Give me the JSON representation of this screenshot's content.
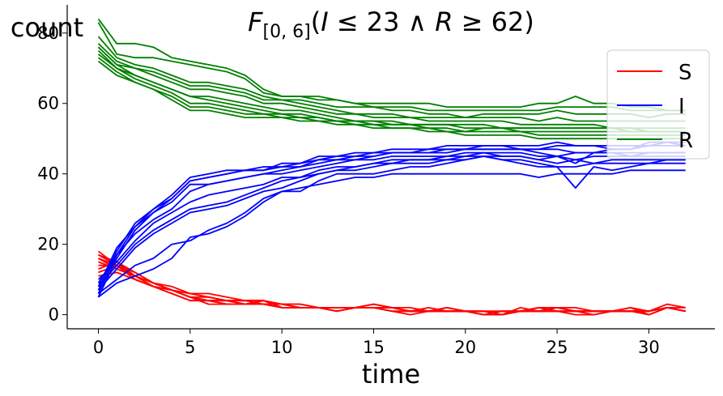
{
  "chart_data": {
    "type": "line",
    "title": {
      "lead": "F",
      "subscript": "[0, 6]",
      "open": "(",
      "a": "I",
      "op1": " ≤ 23 ∧ ",
      "b": "R",
      "op2": " ≥ 62)"
    },
    "xlabel": "time",
    "ylabel": "count",
    "xlim": [
      -1.7,
      33.6
    ],
    "ylim": [
      -4,
      88
    ],
    "x_ticks": [
      0,
      5,
      10,
      15,
      20,
      25,
      30
    ],
    "y_ticks": [
      0,
      20,
      40,
      60,
      80
    ],
    "grid": false,
    "legend_placement": "top-right",
    "colors": {
      "S": "#ff0000",
      "I": "#0000ff",
      "R": "#008000"
    },
    "legend": [
      "S",
      "I",
      "R"
    ],
    "x": [
      0,
      1,
      2,
      3,
      4,
      5,
      6,
      7,
      8,
      9,
      10,
      11,
      12,
      13,
      14,
      15,
      16,
      17,
      18,
      19,
      20,
      21,
      22,
      23,
      24,
      25,
      26,
      27,
      28,
      29,
      30,
      31,
      32
    ],
    "series": [
      {
        "group": "S",
        "values": [
          18,
          14,
          11,
          9,
          7,
          6,
          6,
          5,
          4,
          4,
          3,
          3,
          2,
          2,
          2,
          3,
          2,
          2,
          1,
          2,
          1,
          1,
          0,
          1,
          2,
          2,
          1,
          1,
          1,
          1,
          1,
          2,
          1
        ]
      },
      {
        "group": "S",
        "values": [
          17,
          15,
          12,
          9,
          8,
          6,
          5,
          4,
          4,
          3,
          3,
          2,
          2,
          2,
          2,
          2,
          2,
          1,
          1,
          1,
          1,
          0,
          1,
          1,
          1,
          1,
          1,
          1,
          1,
          1,
          1,
          2,
          1
        ]
      },
      {
        "group": "S",
        "values": [
          16,
          14,
          10,
          8,
          7,
          5,
          4,
          4,
          4,
          4,
          3,
          3,
          2,
          1,
          2,
          2,
          1,
          1,
          2,
          1,
          1,
          1,
          0,
          2,
          1,
          2,
          2,
          1,
          1,
          2,
          1,
          2,
          2
        ]
      },
      {
        "group": "S",
        "values": [
          15,
          13,
          11,
          9,
          7,
          5,
          5,
          4,
          3,
          3,
          2,
          2,
          2,
          2,
          2,
          2,
          2,
          1,
          1,
          2,
          1,
          0,
          1,
          1,
          2,
          1,
          1,
          0,
          1,
          1,
          1,
          2,
          1
        ]
      },
      {
        "group": "S",
        "values": [
          14,
          14,
          10,
          8,
          6,
          4,
          4,
          4,
          3,
          4,
          2,
          2,
          2,
          1,
          2,
          2,
          1,
          1,
          1,
          1,
          1,
          1,
          1,
          1,
          1,
          2,
          1,
          1,
          1,
          1,
          1,
          3,
          2
        ]
      },
      {
        "group": "S",
        "values": [
          13,
          15,
          11,
          9,
          7,
          5,
          4,
          3,
          3,
          3,
          3,
          2,
          2,
          2,
          2,
          3,
          2,
          1,
          1,
          1,
          1,
          0,
          0,
          1,
          1,
          2,
          1,
          1,
          1,
          2,
          0,
          2,
          1
        ]
      },
      {
        "group": "S",
        "values": [
          12,
          14,
          10,
          8,
          7,
          5,
          4,
          4,
          4,
          4,
          2,
          2,
          2,
          1,
          2,
          2,
          2,
          1,
          1,
          1,
          1,
          1,
          0,
          1,
          2,
          1,
          1,
          1,
          1,
          1,
          1,
          2,
          1
        ]
      },
      {
        "group": "S",
        "values": [
          11,
          12,
          10,
          8,
          7,
          5,
          3,
          3,
          3,
          3,
          3,
          2,
          2,
          1,
          2,
          3,
          2,
          1,
          1,
          1,
          1,
          0,
          1,
          1,
          1,
          1,
          1,
          1,
          1,
          1,
          1,
          2,
          1
        ]
      },
      {
        "group": "S",
        "values": [
          16,
          13,
          11,
          8,
          6,
          4,
          4,
          3,
          3,
          4,
          2,
          2,
          2,
          2,
          2,
          2,
          1,
          0,
          1,
          1,
          1,
          0,
          0,
          1,
          1,
          1,
          0,
          0,
          1,
          1,
          1,
          2,
          1
        ]
      },
      {
        "group": "S",
        "values": [
          17,
          14,
          12,
          9,
          7,
          6,
          5,
          4,
          3,
          3,
          2,
          2,
          2,
          1,
          2,
          2,
          2,
          1,
          1,
          2,
          1,
          1,
          1,
          1,
          2,
          2,
          1,
          1,
          1,
          1,
          0,
          2,
          1
        ]
      },
      {
        "group": "I",
        "values": [
          5,
          16,
          24,
          29,
          33,
          38,
          39,
          40,
          41,
          41,
          42,
          42,
          44,
          45,
          45,
          45,
          46,
          46,
          46,
          47,
          47,
          47,
          47,
          47,
          46,
          45,
          43,
          46,
          47,
          47,
          48,
          48,
          48
        ]
      },
      {
        "group": "I",
        "values": [
          6,
          17,
          25,
          30,
          34,
          39,
          40,
          41,
          41,
          41,
          43,
          43,
          45,
          45,
          46,
          46,
          47,
          47,
          47,
          48,
          48,
          48,
          48,
          48,
          48,
          49,
          48,
          48,
          47,
          47,
          49,
          49,
          49
        ]
      },
      {
        "group": "I",
        "values": [
          7,
          18,
          26,
          30,
          33,
          38,
          39,
          40,
          41,
          42,
          42,
          43,
          44,
          44,
          45,
          46,
          46,
          46,
          47,
          47,
          47,
          48,
          48,
          47,
          47,
          48,
          48,
          48,
          48,
          48,
          48,
          49,
          48
        ]
      },
      {
        "group": "I",
        "values": [
          8,
          19,
          25,
          29,
          32,
          37,
          37,
          38,
          39,
          40,
          41,
          42,
          43,
          44,
          44,
          45,
          46,
          46,
          46,
          46,
          47,
          47,
          47,
          47,
          47,
          47,
          46,
          46,
          46,
          46,
          46,
          46,
          46
        ]
      },
      {
        "group": "I",
        "values": [
          9,
          17,
          23,
          27,
          30,
          35,
          37,
          38,
          39,
          40,
          40,
          41,
          42,
          43,
          44,
          44,
          45,
          45,
          45,
          45,
          46,
          46,
          46,
          46,
          45,
          45,
          46,
          46,
          46,
          45,
          46,
          46,
          46
        ]
      },
      {
        "group": "I",
        "values": [
          10,
          15,
          21,
          26,
          29,
          32,
          34,
          35,
          36,
          37,
          39,
          39,
          40,
          41,
          42,
          43,
          43,
          44,
          44,
          44,
          44,
          45,
          45,
          45,
          44,
          45,
          44,
          45,
          45,
          45,
          45,
          45,
          45
        ]
      },
      {
        "group": "I",
        "values": [
          8,
          14,
          20,
          24,
          27,
          30,
          31,
          32,
          34,
          36,
          38,
          39,
          41,
          42,
          42,
          43,
          44,
          44,
          44,
          45,
          45,
          46,
          45,
          45,
          44,
          43,
          44,
          43,
          44,
          44,
          44,
          44,
          44
        ]
      },
      {
        "group": "I",
        "values": [
          7,
          13,
          19,
          23,
          26,
          29,
          30,
          31,
          33,
          35,
          36,
          38,
          40,
          41,
          41,
          42,
          43,
          43,
          43,
          44,
          45,
          45,
          44,
          43,
          42,
          42,
          36,
          42,
          41,
          42,
          43,
          44,
          44
        ]
      },
      {
        "group": "I",
        "values": [
          6,
          10,
          14,
          16,
          20,
          21,
          24,
          26,
          29,
          33,
          35,
          35,
          38,
          40,
          40,
          40,
          41,
          42,
          42,
          43,
          44,
          45,
          44,
          44,
          43,
          42,
          42,
          43,
          43,
          43,
          43,
          43,
          43
        ]
      },
      {
        "group": "I",
        "values": [
          5,
          9,
          11,
          13,
          16,
          22,
          23,
          25,
          28,
          32,
          35,
          36,
          37,
          38,
          39,
          39,
          40,
          40,
          40,
          40,
          40,
          40,
          40,
          40,
          39,
          40,
          40,
          40,
          40,
          41,
          41,
          41,
          41
        ]
      },
      {
        "group": "R",
        "values": [
          84,
          77,
          77,
          76,
          73,
          72,
          71,
          70,
          68,
          64,
          62,
          62,
          61,
          61,
          60,
          60,
          60,
          60,
          60,
          59,
          59,
          59,
          59,
          59,
          60,
          60,
          62,
          60,
          60,
          59,
          59,
          58,
          58
        ]
      },
      {
        "group": "R",
        "values": [
          83,
          74,
          73,
          73,
          72,
          71,
          70,
          69,
          67,
          63,
          62,
          62,
          62,
          61,
          60,
          59,
          59,
          59,
          58,
          58,
          58,
          58,
          58,
          58,
          58,
          59,
          59,
          59,
          59,
          58,
          58,
          58,
          58
        ]
      },
      {
        "group": "R",
        "values": [
          79,
          73,
          71,
          70,
          68,
          66,
          66,
          65,
          64,
          62,
          61,
          61,
          60,
          59,
          59,
          59,
          58,
          58,
          57,
          57,
          56,
          57,
          57,
          57,
          57,
          58,
          57,
          57,
          57,
          57,
          56,
          57,
          57
        ]
      },
      {
        "group": "R",
        "values": [
          77,
          72,
          70,
          69,
          67,
          65,
          65,
          64,
          63,
          61,
          61,
          60,
          59,
          58,
          57,
          57,
          57,
          56,
          56,
          56,
          56,
          56,
          56,
          56,
          55,
          56,
          55,
          55,
          55,
          55,
          55,
          55,
          55
        ]
      },
      {
        "group": "R",
        "values": [
          76,
          71,
          70,
          68,
          66,
          64,
          64,
          63,
          62,
          60,
          60,
          59,
          58,
          57,
          57,
          56,
          56,
          56,
          55,
          55,
          55,
          55,
          55,
          54,
          54,
          54,
          54,
          54,
          53,
          53,
          53,
          53,
          53
        ]
      },
      {
        "group": "R",
        "values": [
          75,
          70,
          68,
          66,
          64,
          62,
          62,
          61,
          60,
          59,
          58,
          58,
          57,
          56,
          55,
          55,
          55,
          54,
          54,
          54,
          54,
          54,
          53,
          53,
          53,
          53,
          53,
          53,
          53,
          52,
          52,
          52,
          52
        ]
      },
      {
        "group": "R",
        "values": [
          74,
          70,
          67,
          65,
          63,
          60,
          60,
          59,
          58,
          57,
          57,
          56,
          56,
          55,
          55,
          54,
          54,
          54,
          53,
          53,
          52,
          53,
          53,
          52,
          52,
          52,
          52,
          52,
          52,
          52,
          52,
          52,
          52
        ]
      },
      {
        "group": "R",
        "values": [
          73,
          69,
          66,
          64,
          62,
          59,
          59,
          58,
          57,
          57,
          56,
          56,
          55,
          55,
          54,
          54,
          53,
          53,
          53,
          52,
          52,
          52,
          52,
          52,
          51,
          51,
          51,
          51,
          51,
          51,
          51,
          51,
          51
        ]
      },
      {
        "group": "R",
        "values": [
          72,
          68,
          66,
          64,
          61,
          58,
          58,
          57,
          56,
          56,
          56,
          55,
          55,
          54,
          54,
          53,
          53,
          53,
          52,
          52,
          51,
          51,
          51,
          51,
          50,
          50,
          50,
          50,
          50,
          50,
          50,
          50,
          50
        ]
      },
      {
        "group": "R",
        "values": [
          76,
          71,
          68,
          66,
          64,
          62,
          61,
          60,
          59,
          58,
          57,
          57,
          56,
          55,
          55,
          55,
          54,
          54,
          54,
          54,
          53,
          53,
          53,
          53,
          53,
          53,
          53,
          53,
          53,
          53,
          52,
          52,
          52
        ]
      }
    ]
  }
}
